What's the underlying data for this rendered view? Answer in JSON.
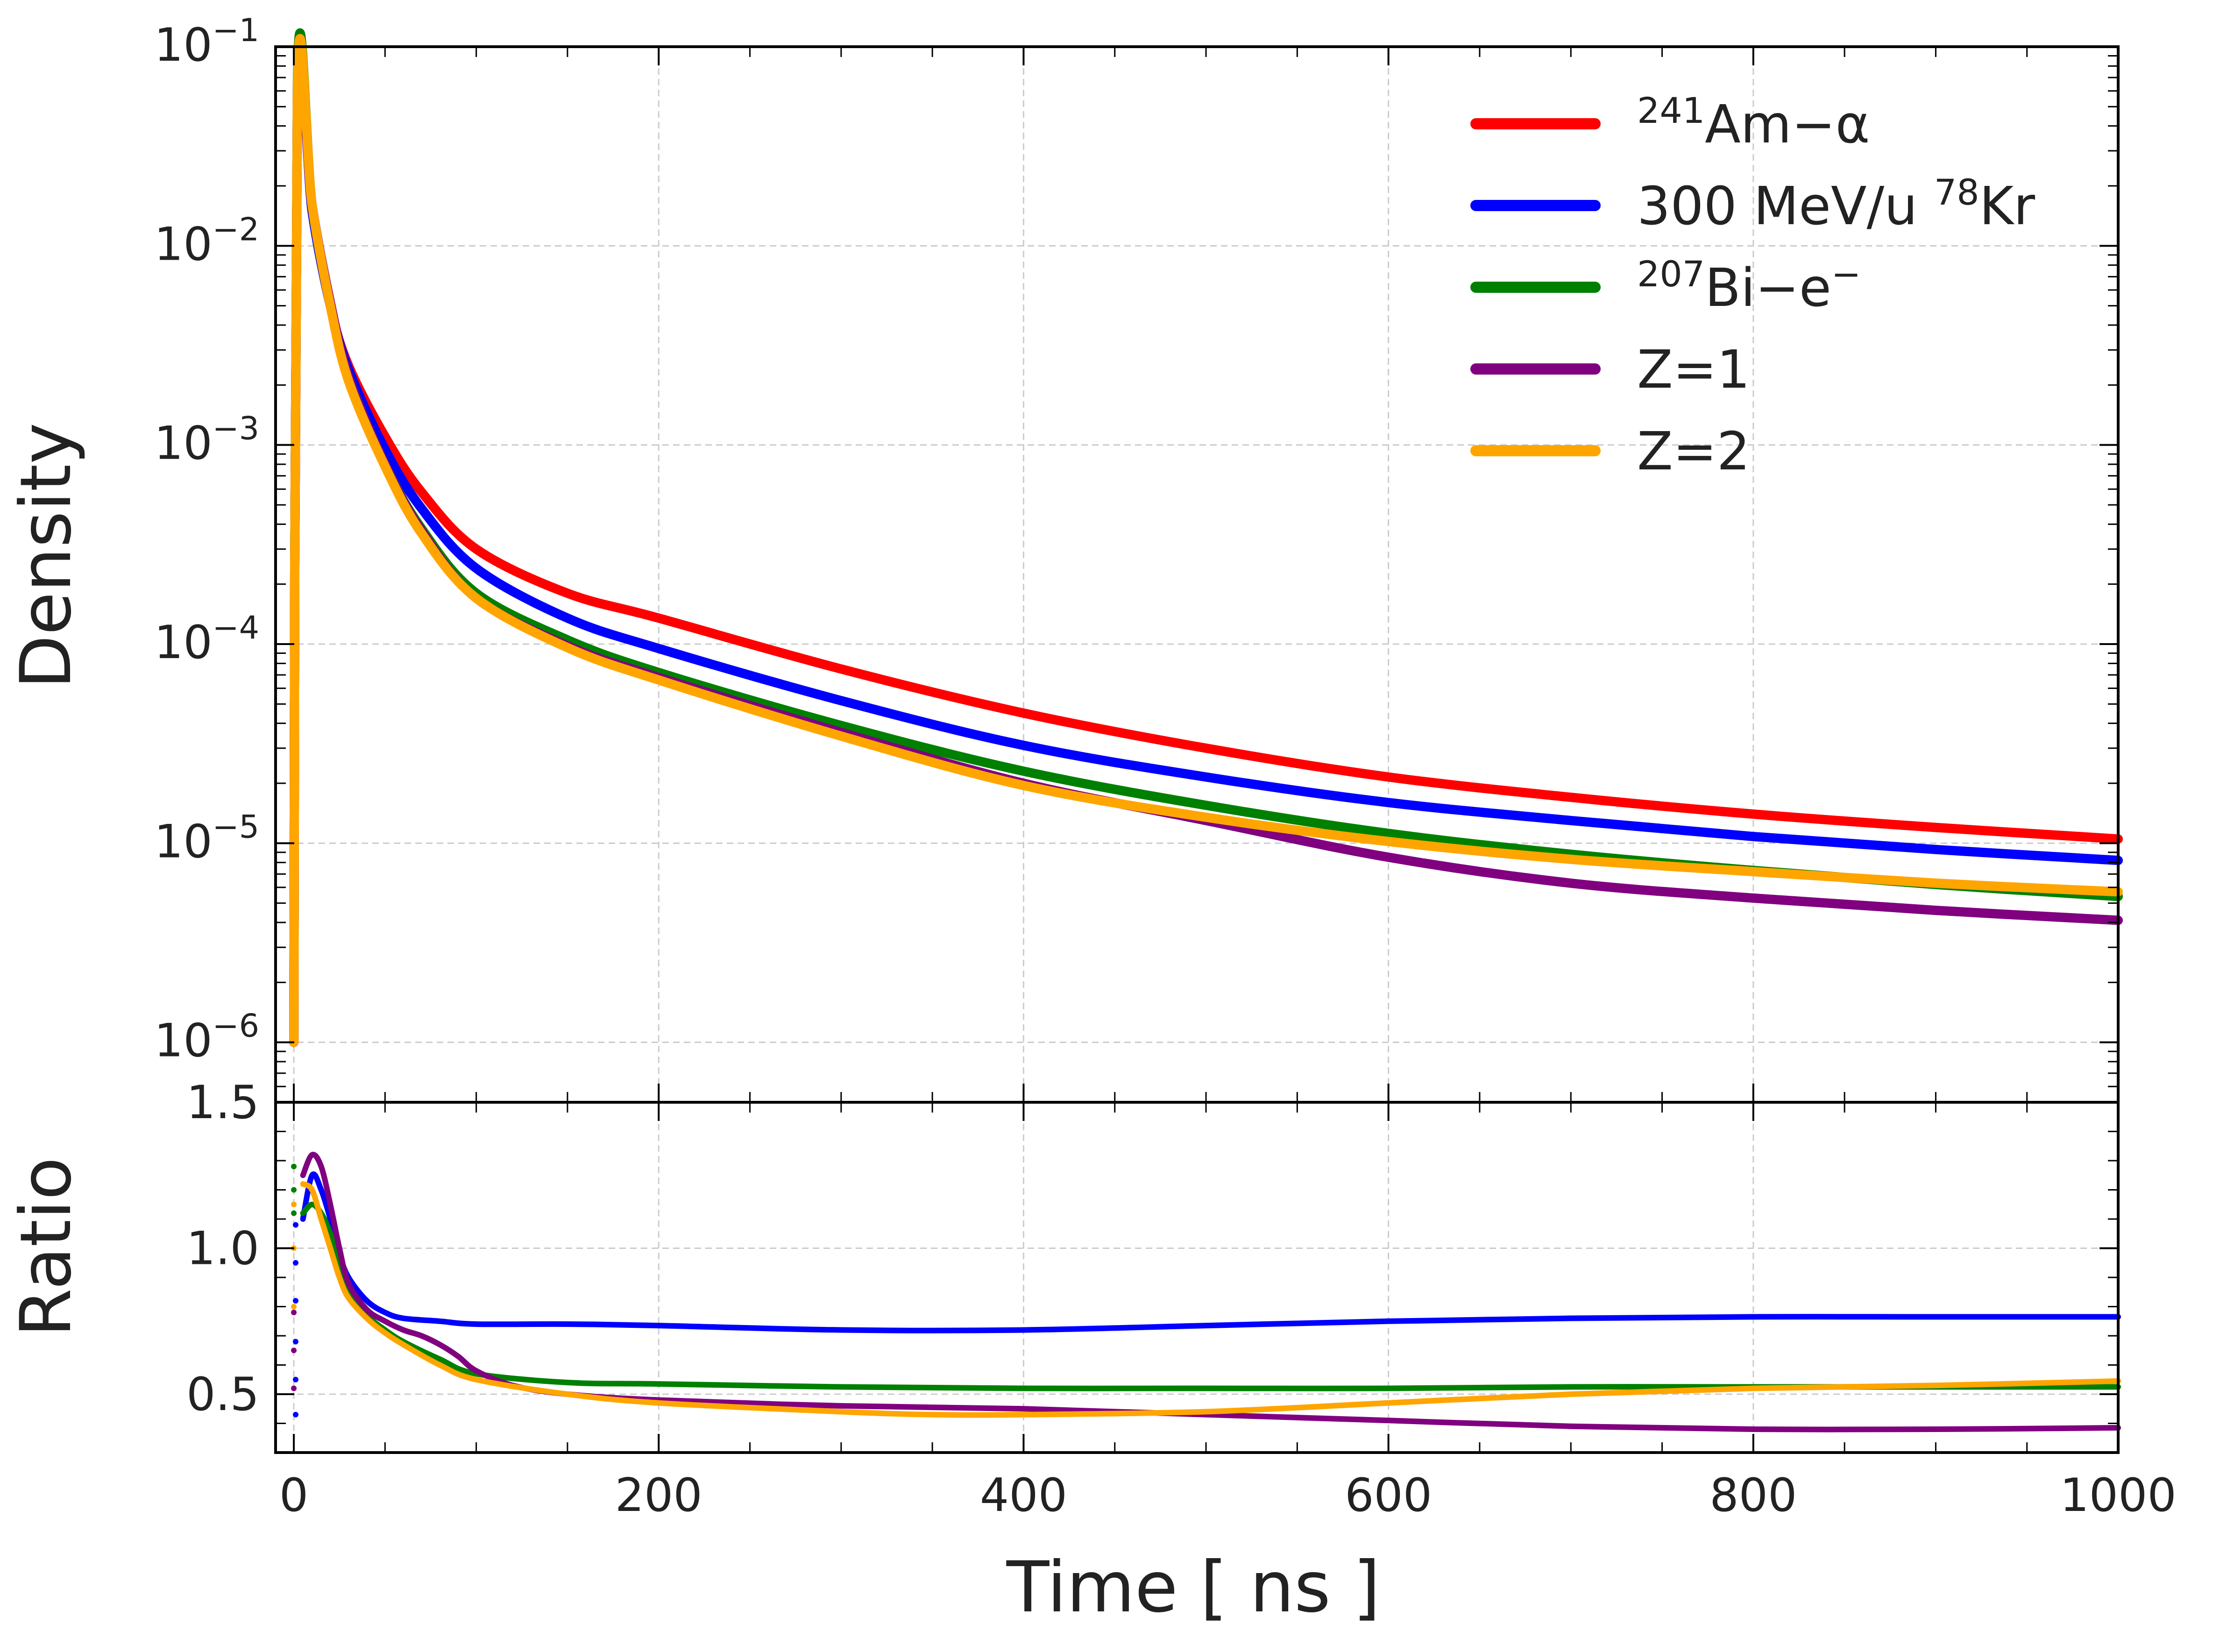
{
  "chart_data": [
    {
      "type": "line",
      "name": "density-panel",
      "yscale": "log",
      "ylabel": "Density",
      "xlim": [
        -10,
        1000
      ],
      "ylim": [
        5e-07,
        0.1
      ],
      "y_ticks": [
        {
          "value": 0.1,
          "base": "10",
          "exp": "−1"
        },
        {
          "value": 0.01,
          "base": "10",
          "exp": "−2"
        },
        {
          "value": 0.001,
          "base": "10",
          "exp": "−3"
        },
        {
          "value": 0.0001,
          "base": "10",
          "exp": "−4"
        },
        {
          "value": 1e-05,
          "base": "10",
          "exp": "−5"
        },
        {
          "value": 1e-06,
          "base": "10",
          "exp": "−6"
        }
      ],
      "grid": true,
      "legend_position": "top-right",
      "series": [
        {
          "name": "241Am-alpha",
          "label_sup": "241",
          "label_main": "Am−α",
          "color": "#ff0000",
          "x": [
            0,
            2,
            10,
            20,
            30,
            50,
            70,
            100,
            150,
            200,
            300,
            400,
            500,
            600,
            700,
            800,
            900,
            1000
          ],
          "y": [
            1e-06,
            0.06,
            0.015,
            0.005,
            0.0025,
            0.0011,
            0.00058,
            0.0003,
            0.00018,
            0.000135,
            7.5e-05,
            4.5e-05,
            3e-05,
            2.15e-05,
            1.7e-05,
            1.4e-05,
            1.2e-05,
            1.05e-05
          ]
        },
        {
          "name": "300MeV-Kr",
          "label_pre": "300 MeV/u ",
          "label_sup": "78",
          "label_main": "Kr",
          "color": "#0000ff",
          "x": [
            0,
            2,
            10,
            20,
            30,
            50,
            70,
            100,
            150,
            200,
            300,
            400,
            500,
            600,
            700,
            800,
            900,
            1000
          ],
          "y": [
            1e-06,
            0.065,
            0.015,
            0.005,
            0.0024,
            0.00095,
            0.00048,
            0.00024,
            0.000135,
            9.5e-05,
            5.2e-05,
            3.1e-05,
            2.15e-05,
            1.6e-05,
            1.3e-05,
            1.08e-05,
            9.3e-06,
            8.2e-06
          ]
        },
        {
          "name": "207Bi-electron",
          "label_sup": "207",
          "label_main": "Bi−e",
          "label_sup2": "−",
          "color": "#008000",
          "x": [
            0,
            2,
            10,
            20,
            30,
            50,
            70,
            100,
            150,
            200,
            300,
            400,
            500,
            600,
            700,
            800,
            900,
            1000
          ],
          "y": [
            1e-06,
            0.07,
            0.016,
            0.005,
            0.0022,
            0.0008,
            0.00038,
            0.00018,
            0.000105,
            7.2e-05,
            3.9e-05,
            2.3e-05,
            1.55e-05,
            1.12e-05,
            8.8e-06,
            7.3e-06,
            6.2e-06,
            5.4e-06
          ]
        },
        {
          "name": "Z=1",
          "label_main": "Z=1",
          "color": "#800080",
          "x": [
            0,
            2,
            10,
            20,
            30,
            50,
            70,
            100,
            150,
            200,
            300,
            400,
            500,
            600,
            700,
            800,
            900,
            1000
          ],
          "y": [
            1e-06,
            0.06,
            0.016,
            0.0052,
            0.0022,
            0.0008,
            0.00037,
            0.00017,
            9.8e-05,
            6.8e-05,
            3.6e-05,
            2e-05,
            1.3e-05,
            8.5e-06,
            6.3e-06,
            5.3e-06,
            4.6e-06,
            4.1e-06
          ]
        },
        {
          "name": "Z=2",
          "label_main": "Z=2",
          "color": "#ffa500",
          "x": [
            0,
            2,
            10,
            20,
            30,
            50,
            70,
            100,
            150,
            200,
            300,
            400,
            500,
            600,
            700,
            800,
            900,
            1000
          ],
          "y": [
            1e-06,
            0.065,
            0.016,
            0.005,
            0.0021,
            0.00078,
            0.00036,
            0.00017,
            9.6e-05,
            6.6e-05,
            3.45e-05,
            1.95e-05,
            1.35e-05,
            1.02e-05,
            8.3e-06,
            7.2e-06,
            6.3e-06,
            5.7e-06
          ]
        }
      ]
    },
    {
      "type": "line",
      "name": "ratio-panel",
      "ylabel": "Ratio",
      "xlabel": "Time [ ns ]",
      "xlim": [
        -10,
        1000
      ],
      "ylim": [
        0.3,
        1.5
      ],
      "y_ticks": [
        {
          "value": 1.5,
          "text": "1.5"
        },
        {
          "value": 1.0,
          "text": "1.0"
        },
        {
          "value": 0.5,
          "text": "0.5"
        }
      ],
      "x_ticks": [
        {
          "value": 0,
          "text": "0"
        },
        {
          "value": 200,
          "text": "200"
        },
        {
          "value": 400,
          "text": "400"
        },
        {
          "value": 600,
          "text": "600"
        },
        {
          "value": 800,
          "text": "800"
        },
        {
          "value": 1000,
          "text": "1000"
        }
      ],
      "grid": true,
      "series": [
        {
          "name": "300MeV-Kr",
          "color": "#0000ff",
          "x": [
            5,
            10,
            15,
            20,
            25,
            30,
            40,
            50,
            60,
            80,
            100,
            150,
            200,
            300,
            400,
            500,
            600,
            700,
            800,
            900,
            1000
          ],
          "y": [
            1.1,
            1.25,
            1.2,
            1.1,
            0.98,
            0.9,
            0.82,
            0.78,
            0.76,
            0.75,
            0.74,
            0.74,
            0.735,
            0.72,
            0.72,
            0.735,
            0.75,
            0.76,
            0.765,
            0.765,
            0.765
          ]
        },
        {
          "name": "207Bi-electron",
          "color": "#008000",
          "x": [
            5,
            10,
            15,
            20,
            25,
            30,
            40,
            50,
            60,
            80,
            100,
            150,
            200,
            300,
            400,
            500,
            600,
            700,
            800,
            900,
            1000
          ],
          "y": [
            1.12,
            1.15,
            1.12,
            1.05,
            0.94,
            0.85,
            0.77,
            0.72,
            0.68,
            0.62,
            0.57,
            0.54,
            0.535,
            0.525,
            0.52,
            0.52,
            0.52,
            0.525,
            0.525,
            0.525,
            0.525
          ]
        },
        {
          "name": "Z=1",
          "color": "#800080",
          "x": [
            5,
            10,
            15,
            20,
            25,
            30,
            40,
            50,
            60,
            70,
            80,
            90,
            100,
            120,
            150,
            200,
            300,
            400,
            500,
            600,
            700,
            800,
            900,
            1000
          ],
          "y": [
            1.25,
            1.32,
            1.28,
            1.15,
            1.0,
            0.88,
            0.79,
            0.75,
            0.72,
            0.7,
            0.67,
            0.63,
            0.58,
            0.53,
            0.5,
            0.48,
            0.46,
            0.45,
            0.43,
            0.41,
            0.39,
            0.38,
            0.38,
            0.385
          ]
        },
        {
          "name": "Z=2",
          "color": "#ffa500",
          "x": [
            5,
            10,
            15,
            20,
            25,
            30,
            40,
            50,
            60,
            80,
            100,
            150,
            200,
            300,
            350,
            400,
            500,
            600,
            700,
            800,
            900,
            1000
          ],
          "y": [
            1.22,
            1.2,
            1.1,
            1.0,
            0.9,
            0.83,
            0.76,
            0.71,
            0.67,
            0.6,
            0.55,
            0.5,
            0.47,
            0.44,
            0.43,
            0.43,
            0.44,
            0.47,
            0.5,
            0.52,
            0.53,
            0.545
          ]
        }
      ],
      "early_points": [
        {
          "color": "#0000ff",
          "x": [
            1,
            1,
            1,
            1,
            1,
            1
          ],
          "y": [
            0.43,
            0.55,
            0.68,
            0.82,
            0.95,
            1.08
          ]
        },
        {
          "color": "#008000",
          "x": [
            0,
            0,
            0
          ],
          "y": [
            1.12,
            1.2,
            1.28
          ]
        },
        {
          "color": "#800080",
          "x": [
            0,
            0,
            0
          ],
          "y": [
            0.52,
            0.65,
            0.78
          ]
        },
        {
          "color": "#ffa500",
          "x": [
            0,
            0,
            0
          ],
          "y": [
            0.8,
            1.0,
            1.15
          ]
        }
      ]
    }
  ]
}
